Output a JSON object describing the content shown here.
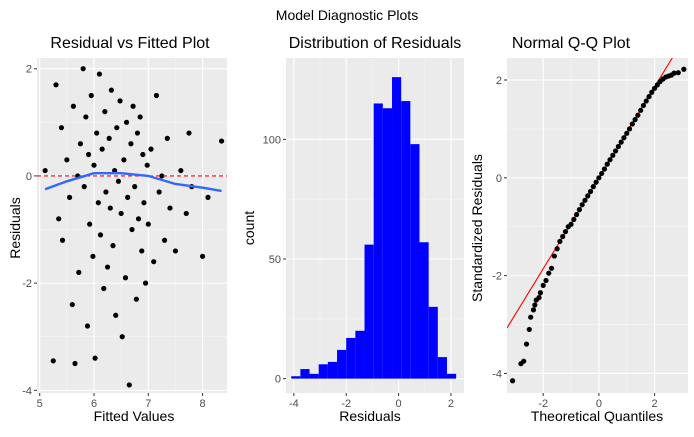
{
  "figure_title": "Model Diagnostic Plots",
  "colors": {
    "panel_background": "#ebebeb",
    "grid_major": "#ffffff",
    "grid_minor": "#f5f5f5",
    "points": "#000000",
    "loess_line": "#3366ff",
    "zero_line": "#ff0000",
    "histogram_fill": "#0000ff",
    "qq_reference_line": "#ff0000"
  },
  "chart_data": [
    {
      "type": "scatter",
      "title": "Residual vs Fitted Plot",
      "xlabel": "Fitted Values",
      "ylabel": "Residuals",
      "xlim": [
        4.95,
        8.45
      ],
      "ylim": [
        -4.05,
        2.2
      ],
      "xticks": [
        5,
        6,
        7,
        8
      ],
      "xtick_labels": [
        "5",
        "6",
        "7",
        "8"
      ],
      "yticks": [
        -4,
        -2,
        0,
        2
      ],
      "ytick_labels": [
        "-4",
        "-2",
        "0",
        "2"
      ],
      "grid": true,
      "reference_line": {
        "y": 0,
        "style": "dashed"
      },
      "points": [
        [
          5.1,
          0.1
        ],
        [
          5.25,
          -3.45
        ],
        [
          5.3,
          1.7
        ],
        [
          5.35,
          -0.8
        ],
        [
          5.4,
          0.9
        ],
        [
          5.42,
          -1.2
        ],
        [
          5.5,
          0.3
        ],
        [
          5.55,
          -0.4
        ],
        [
          5.6,
          -2.4
        ],
        [
          5.62,
          1.3
        ],
        [
          5.65,
          -3.5
        ],
        [
          5.7,
          0.0
        ],
        [
          5.72,
          -1.8
        ],
        [
          5.75,
          0.6
        ],
        [
          5.8,
          2.0
        ],
        [
          5.82,
          -0.2
        ],
        [
          5.85,
          1.1
        ],
        [
          5.88,
          -2.8
        ],
        [
          5.9,
          0.4
        ],
        [
          5.92,
          -0.9
        ],
        [
          5.95,
          1.5
        ],
        [
          5.98,
          -1.5
        ],
        [
          6.0,
          0.2
        ],
        [
          6.02,
          -3.4
        ],
        [
          6.05,
          0.8
        ],
        [
          6.08,
          -0.5
        ],
        [
          6.1,
          1.9
        ],
        [
          6.12,
          -1.1
        ],
        [
          6.15,
          0.5
        ],
        [
          6.18,
          -2.1
        ],
        [
          6.2,
          1.2
        ],
        [
          6.22,
          -0.3
        ],
        [
          6.25,
          -1.7
        ],
        [
          6.28,
          0.7
        ],
        [
          6.3,
          -0.6
        ],
        [
          6.32,
          1.6
        ],
        [
          6.35,
          -1.3
        ],
        [
          6.38,
          0.1
        ],
        [
          6.4,
          -2.6
        ],
        [
          6.42,
          0.9
        ],
        [
          6.45,
          -0.1
        ],
        [
          6.48,
          1.4
        ],
        [
          6.5,
          -0.7
        ],
        [
          6.52,
          -3.0
        ],
        [
          6.55,
          0.3
        ],
        [
          6.58,
          -1.9
        ],
        [
          6.6,
          1.0
        ],
        [
          6.62,
          -0.4
        ],
        [
          6.65,
          -3.9
        ],
        [
          6.68,
          0.6
        ],
        [
          6.7,
          -1.0
        ],
        [
          6.72,
          1.3
        ],
        [
          6.75,
          -0.2
        ],
        [
          6.78,
          -2.3
        ],
        [
          6.8,
          0.8
        ],
        [
          6.82,
          -0.8
        ],
        [
          6.85,
          1.1
        ],
        [
          6.88,
          -1.4
        ],
        [
          6.9,
          0.4
        ],
        [
          6.92,
          -0.5
        ],
        [
          6.95,
          -2.0
        ],
        [
          6.98,
          0.2
        ],
        [
          7.0,
          -0.9
        ],
        [
          7.05,
          0.5
        ],
        [
          7.1,
          -1.6
        ],
        [
          7.15,
          1.5
        ],
        [
          7.2,
          -0.3
        ],
        [
          7.25,
          0.0
        ],
        [
          7.3,
          -1.2
        ],
        [
          7.35,
          0.7
        ],
        [
          7.4,
          -0.6
        ],
        [
          7.5,
          -1.4
        ],
        [
          7.6,
          0.1
        ],
        [
          7.7,
          -0.7
        ],
        [
          7.75,
          0.8
        ],
        [
          7.8,
          -0.2
        ],
        [
          8.0,
          -1.5
        ],
        [
          8.1,
          -0.4
        ],
        [
          8.35,
          0.65
        ]
      ],
      "loess": [
        [
          5.1,
          -0.25
        ],
        [
          5.5,
          -0.1
        ],
        [
          6.0,
          0.05
        ],
        [
          6.5,
          0.05
        ],
        [
          7.0,
          0.0
        ],
        [
          7.5,
          -0.15
        ],
        [
          8.0,
          -0.22
        ],
        [
          8.35,
          -0.28
        ]
      ]
    },
    {
      "type": "bar",
      "title": "Distribution of Residuals",
      "xlabel": "Residuals",
      "ylabel": "count",
      "xlim": [
        -4.3,
        2.5
      ],
      "ylim": [
        -6,
        134
      ],
      "xticks": [
        -4,
        -2,
        0,
        2
      ],
      "xtick_labels": [
        "-4",
        "-2",
        "0",
        "2"
      ],
      "yticks": [
        0,
        50,
        100
      ],
      "ytick_labels": [
        "0",
        "50",
        "100"
      ],
      "grid": true,
      "bin_edges": [
        -4.1,
        -3.75,
        -3.4,
        -3.05,
        -2.7,
        -2.35,
        -2.0,
        -1.65,
        -1.3,
        -0.95,
        -0.6,
        -0.25,
        0.1,
        0.45,
        0.8,
        1.15,
        1.5,
        1.85,
        2.2
      ],
      "counts": [
        1,
        4,
        2,
        6,
        7,
        12,
        17,
        20,
        56,
        115,
        113,
        126,
        116,
        98,
        57,
        30,
        9,
        2
      ]
    },
    {
      "type": "scatter",
      "title": "Normal Q-Q Plot",
      "xlabel": "Theoretical Quantiles",
      "ylabel": "Standardized Residuals",
      "xlim": [
        -3.3,
        3.2
      ],
      "ylim": [
        -4.4,
        2.45
      ],
      "xticks": [
        -2,
        0,
        2
      ],
      "xtick_labels": [
        "-2",
        "0",
        "2"
      ],
      "yticks": [
        -4,
        -2,
        0,
        2
      ],
      "ytick_labels": [
        "-4",
        "-2",
        "0",
        "2"
      ],
      "grid": true,
      "reference_line": {
        "intercept": 0.0,
        "slope": 0.93
      },
      "points_note": "quantile pairs",
      "points": [
        [
          -3.1,
          -4.15
        ],
        [
          -2.8,
          -3.8
        ],
        [
          -2.7,
          -3.75
        ],
        [
          -2.6,
          -3.4
        ],
        [
          -2.5,
          -3.1
        ],
        [
          -2.45,
          -2.85
        ],
        [
          -2.35,
          -2.7
        ],
        [
          -2.3,
          -2.6
        ],
        [
          -2.25,
          -2.5
        ],
        [
          -2.15,
          -2.45
        ],
        [
          -2.1,
          -2.35
        ],
        [
          -2.0,
          -2.2
        ],
        [
          -1.9,
          -2.1
        ],
        [
          -1.8,
          -1.95
        ],
        [
          -1.7,
          -1.85
        ],
        [
          -1.6,
          -1.6
        ],
        [
          -1.5,
          -1.45
        ],
        [
          -1.4,
          -1.3
        ],
        [
          -1.3,
          -1.2
        ],
        [
          -1.2,
          -1.1
        ],
        [
          -1.1,
          -1.0
        ],
        [
          -1.0,
          -0.95
        ],
        [
          -0.9,
          -0.85
        ],
        [
          -0.8,
          -0.75
        ],
        [
          -0.7,
          -0.65
        ],
        [
          -0.6,
          -0.55
        ],
        [
          -0.5,
          -0.46
        ],
        [
          -0.4,
          -0.37
        ],
        [
          -0.3,
          -0.28
        ],
        [
          -0.2,
          -0.18
        ],
        [
          -0.1,
          -0.09
        ],
        [
          0.0,
          0.0
        ],
        [
          0.1,
          0.09
        ],
        [
          0.2,
          0.18
        ],
        [
          0.3,
          0.28
        ],
        [
          0.4,
          0.37
        ],
        [
          0.5,
          0.46
        ],
        [
          0.6,
          0.55
        ],
        [
          0.7,
          0.64
        ],
        [
          0.8,
          0.73
        ],
        [
          0.9,
          0.82
        ],
        [
          1.0,
          0.91
        ],
        [
          1.1,
          1.0
        ],
        [
          1.2,
          1.1
        ],
        [
          1.3,
          1.19
        ],
        [
          1.4,
          1.28
        ],
        [
          1.5,
          1.38
        ],
        [
          1.6,
          1.48
        ],
        [
          1.7,
          1.57
        ],
        [
          1.8,
          1.66
        ],
        [
          1.9,
          1.75
        ],
        [
          2.0,
          1.83
        ],
        [
          2.1,
          1.9
        ],
        [
          2.2,
          1.97
        ],
        [
          2.3,
          2.02
        ],
        [
          2.4,
          2.06
        ],
        [
          2.5,
          2.08
        ],
        [
          2.6,
          2.1
        ],
        [
          2.7,
          2.14
        ],
        [
          2.85,
          2.15
        ],
        [
          3.05,
          2.22
        ]
      ]
    }
  ]
}
